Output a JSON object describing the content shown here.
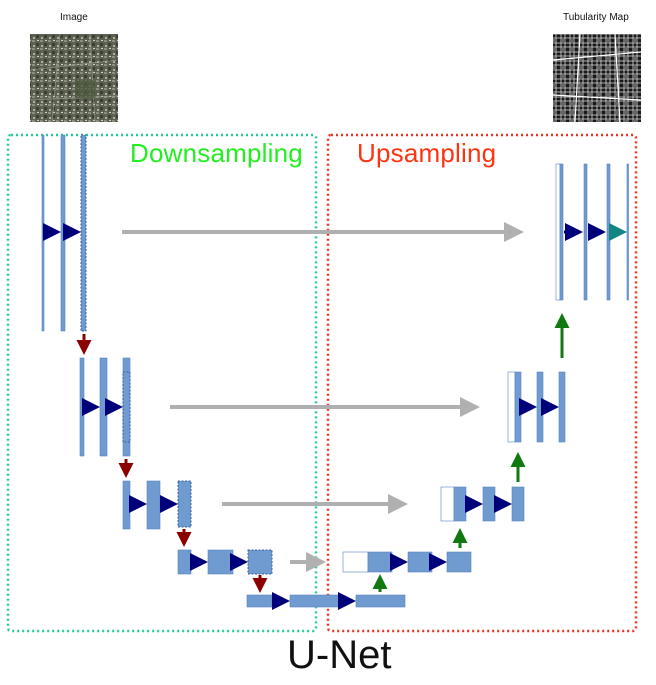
{
  "labels": {
    "input": "Image",
    "output": "Tubularity Map",
    "downsampling": "Downsampling",
    "upsampling": "Upsampling",
    "title": "U-Net"
  },
  "colors": {
    "block_fill": "#6f9bd1",
    "block_stroke": "#5a84bd",
    "forward_arrow": "#00007a",
    "down_arrow": "#8b0000",
    "up_arrow": "#107a10",
    "skip_arrow": "#b0b0b0",
    "output_arrow": "#138585",
    "downsampling_border": "#22cc99",
    "upsampling_border": "#ee3322",
    "downsampling_text": "#22ee22",
    "upsampling_text": "#ff3311"
  },
  "icons": {
    "input_image": "aerial-satellite-image",
    "output_image": "tubularity-map-image"
  }
}
